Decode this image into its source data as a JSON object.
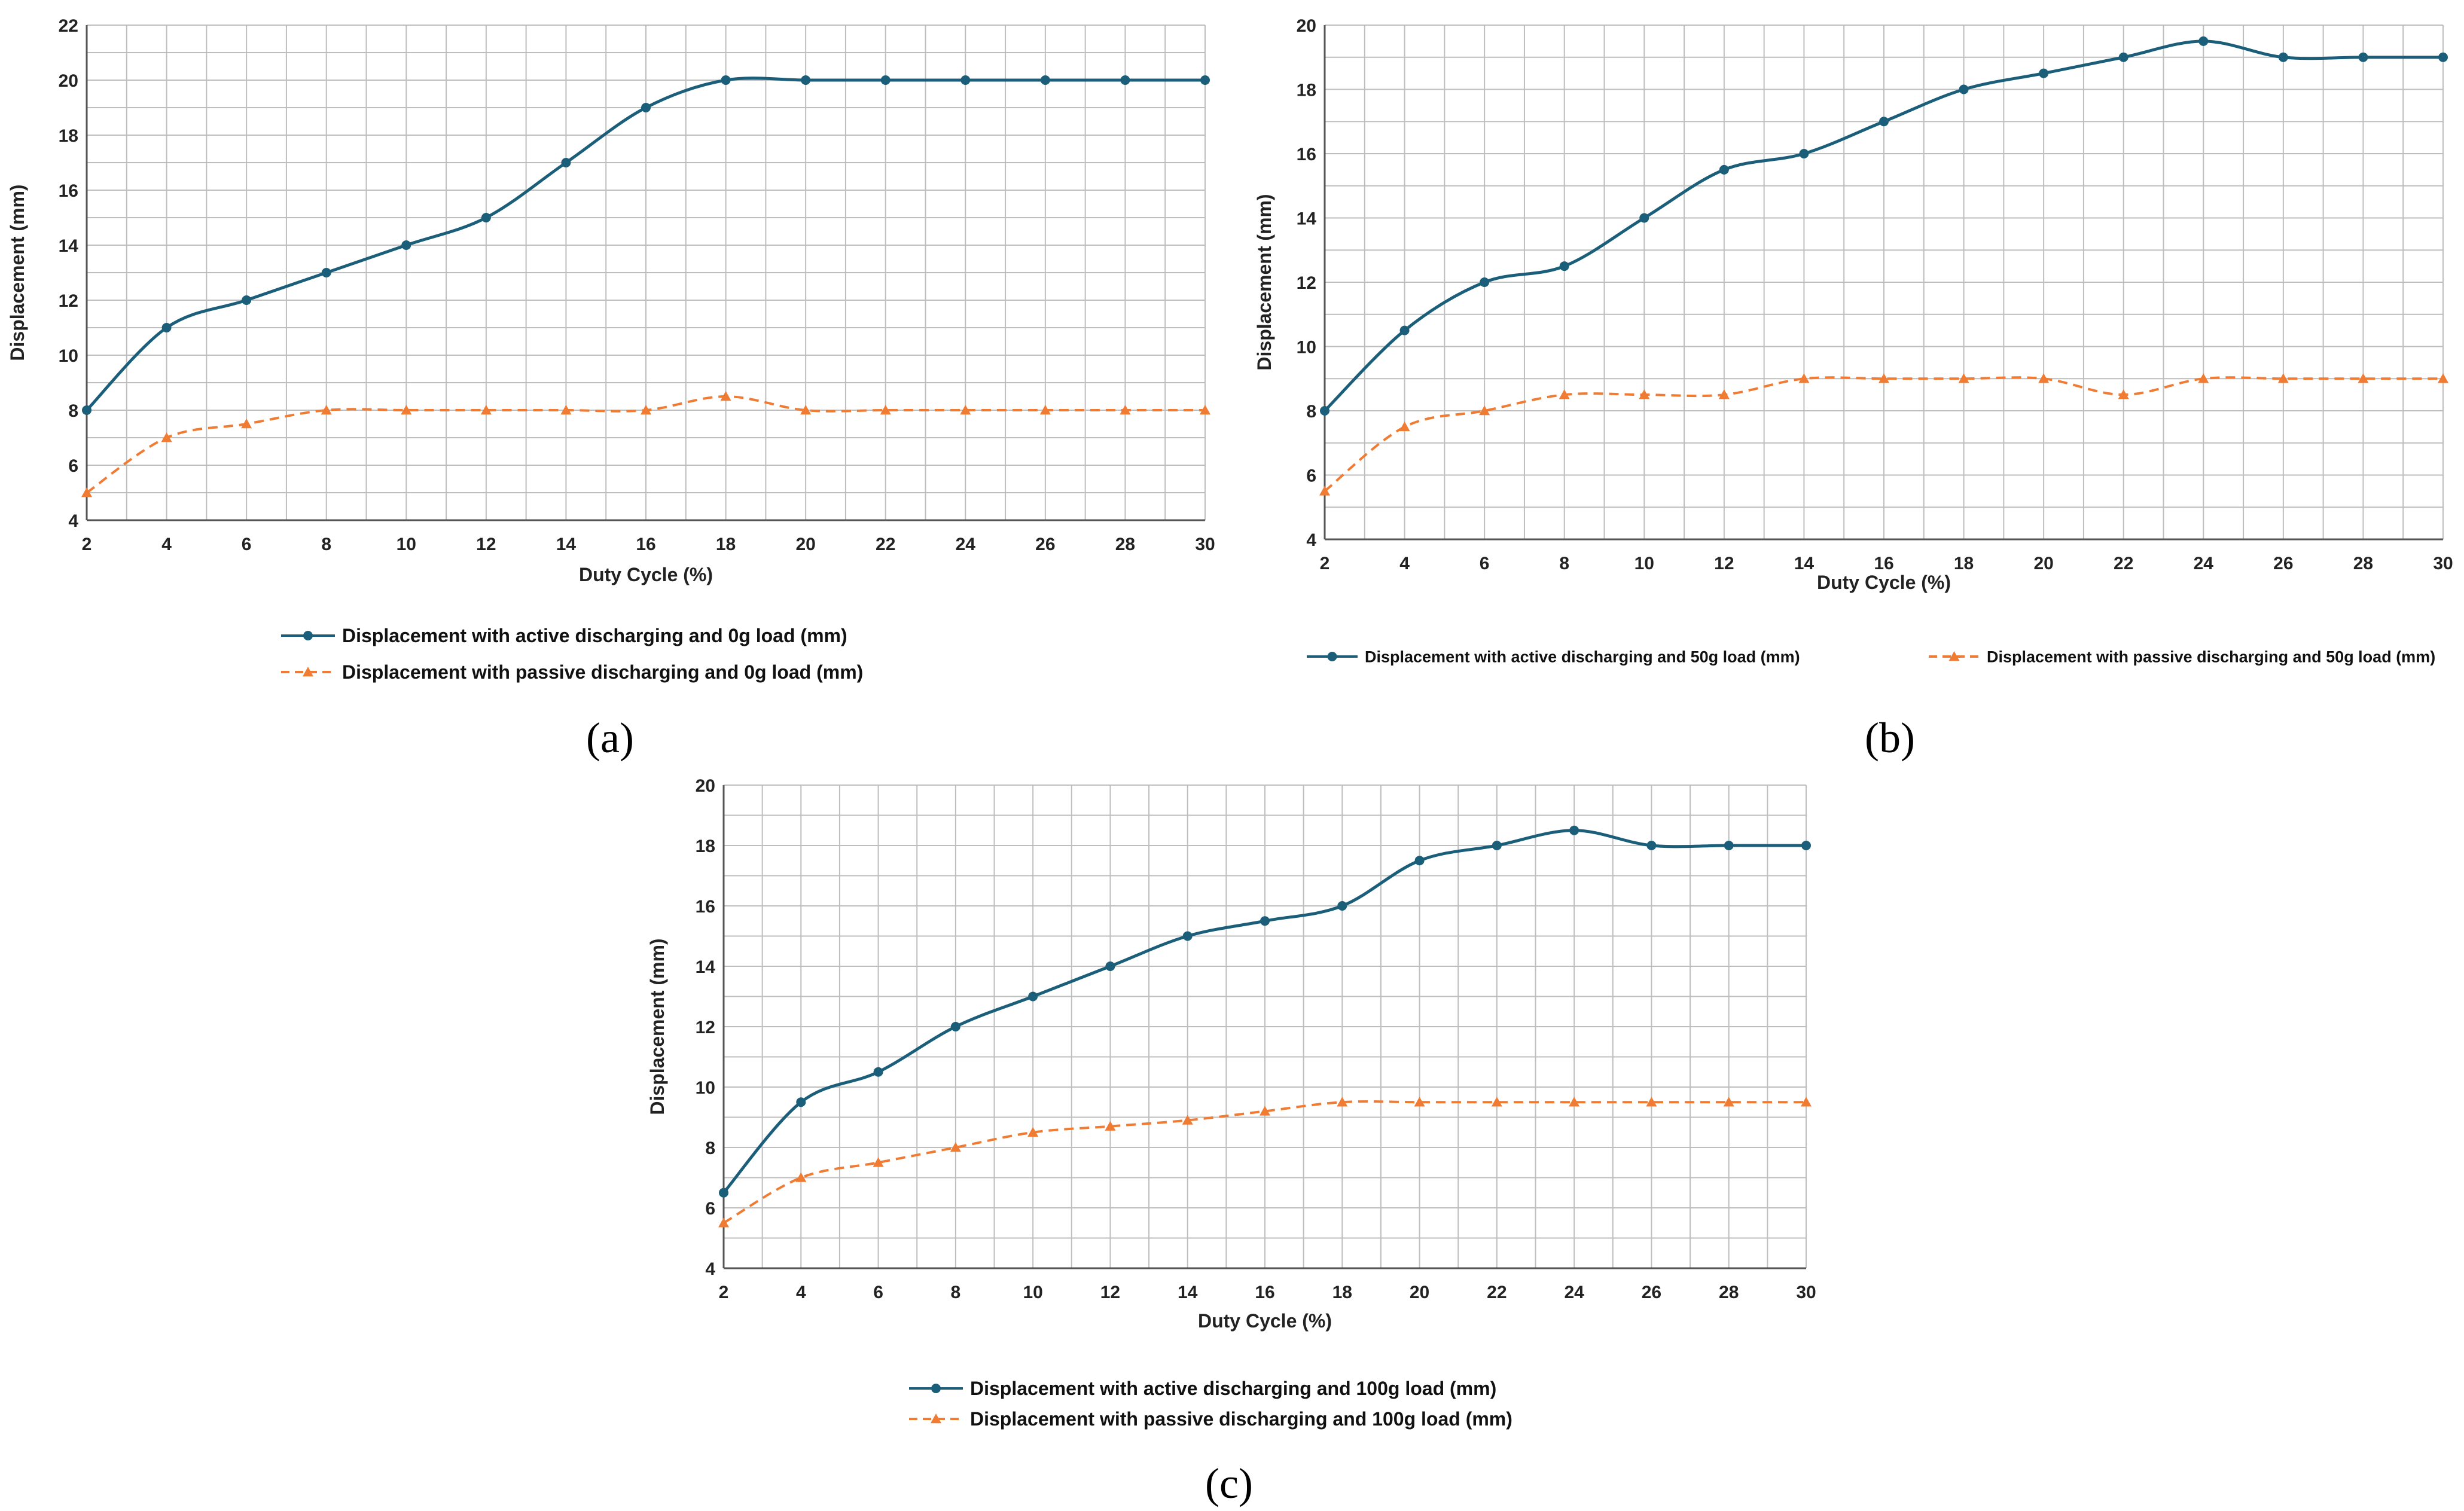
{
  "colors": {
    "active": "#1B5E7A",
    "passive": "#F07B33",
    "grid": "#BEBEBE",
    "axis": "#555555"
  },
  "chart_data": [
    {
      "type": "line",
      "panel": "(a)",
      "xlabel": "Duty Cycle (%)",
      "ylabel": "Displacement (mm)",
      "xlim": [
        2,
        30
      ],
      "ylim": [
        4,
        22
      ],
      "xticks": [
        2,
        4,
        6,
        8,
        10,
        12,
        14,
        16,
        18,
        20,
        22,
        24,
        26,
        28,
        30
      ],
      "yticks": [
        4,
        6,
        8,
        10,
        12,
        14,
        16,
        18,
        20,
        22
      ],
      "grid": true,
      "legend_position": "bottom",
      "legend_layout": "stacked",
      "x": [
        2,
        4,
        6,
        8,
        10,
        12,
        14,
        16,
        18,
        20,
        22,
        24,
        26,
        28,
        30
      ],
      "series": [
        {
          "name": "Displacement with active discharging and 0g load (mm)",
          "style": "solid",
          "marker": "circle",
          "color_key": "active",
          "values": [
            8,
            11,
            12,
            13,
            14,
            15,
            17,
            19,
            20,
            20,
            20,
            20,
            20,
            20,
            20
          ]
        },
        {
          "name": "Displacement with passive discharging and 0g load (mm)",
          "style": "dashed",
          "marker": "triangle",
          "color_key": "passive",
          "values": [
            5,
            7,
            7.5,
            8,
            8,
            8,
            8,
            8,
            8.5,
            8,
            8,
            8,
            8,
            8,
            8
          ]
        }
      ]
    },
    {
      "type": "line",
      "panel": "(b)",
      "xlabel": "Duty Cycle (%)",
      "ylabel": "Displacement (mm)",
      "xlim": [
        2,
        30
      ],
      "ylim": [
        4,
        20
      ],
      "xticks": [
        2,
        4,
        6,
        8,
        10,
        12,
        14,
        16,
        18,
        20,
        22,
        24,
        26,
        28,
        30
      ],
      "yticks": [
        4,
        6,
        8,
        10,
        12,
        14,
        16,
        18,
        20
      ],
      "grid": true,
      "legend_position": "bottom",
      "legend_layout": "inline",
      "x": [
        2,
        4,
        6,
        8,
        10,
        12,
        14,
        16,
        18,
        20,
        22,
        24,
        26,
        28,
        30
      ],
      "series": [
        {
          "name": "Displacement with active discharging and 50g load (mm)",
          "style": "solid",
          "marker": "circle",
          "color_key": "active",
          "values": [
            8,
            10.5,
            12,
            12.5,
            14,
            15.5,
            16,
            17,
            18,
            18.5,
            19,
            19.5,
            19,
            19,
            19
          ]
        },
        {
          "name": "Displacement with passive discharging and 50g load (mm)",
          "style": "dashed",
          "marker": "triangle",
          "color_key": "passive",
          "values": [
            5.5,
            7.5,
            8,
            8.5,
            8.5,
            8.5,
            9,
            9,
            9,
            9,
            8.5,
            9,
            9,
            9,
            9
          ]
        }
      ]
    },
    {
      "type": "line",
      "panel": "(c)",
      "xlabel": "Duty Cycle (%)",
      "ylabel": "Displacement (mm)",
      "xlim": [
        2,
        30
      ],
      "ylim": [
        4,
        20
      ],
      "xticks": [
        2,
        4,
        6,
        8,
        10,
        12,
        14,
        16,
        18,
        20,
        22,
        24,
        26,
        28,
        30
      ],
      "yticks": [
        4,
        6,
        8,
        10,
        12,
        14,
        16,
        18,
        20
      ],
      "grid": true,
      "legend_position": "bottom",
      "legend_layout": "stacked",
      "x": [
        2,
        4,
        6,
        8,
        10,
        12,
        14,
        16,
        18,
        20,
        22,
        24,
        26,
        28,
        30
      ],
      "series": [
        {
          "name": "Displacement with active discharging and 100g load (mm)",
          "style": "solid",
          "marker": "circle",
          "color_key": "active",
          "values": [
            6.5,
            9.5,
            10.5,
            12,
            13,
            14,
            15,
            15.5,
            16,
            17.5,
            18,
            18.5,
            18,
            18,
            18
          ]
        },
        {
          "name": "Displacement with passive discharging and 100g load (mm)",
          "style": "dashed",
          "marker": "triangle",
          "color_key": "passive",
          "values": [
            5.5,
            7,
            7.5,
            8,
            8.5,
            8.7,
            8.9,
            9.2,
            9.5,
            9.5,
            9.5,
            9.5,
            9.5,
            9.5,
            9.5
          ]
        }
      ]
    }
  ]
}
